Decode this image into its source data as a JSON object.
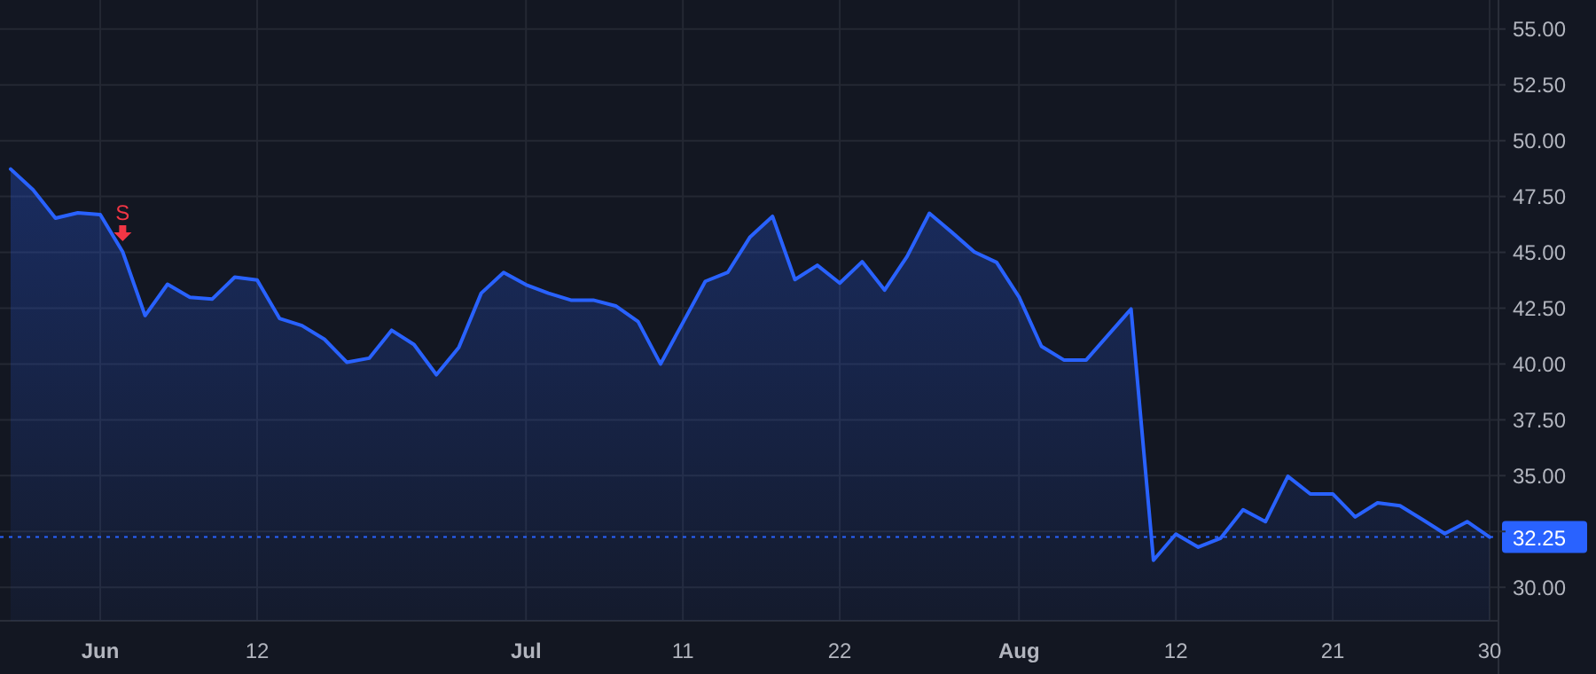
{
  "chart_data": {
    "type": "area",
    "categories": [
      null,
      null,
      null,
      null,
      "Jun",
      null,
      null,
      null,
      null,
      null,
      null,
      "12",
      null,
      null,
      null,
      null,
      null,
      null,
      null,
      null,
      null,
      null,
      null,
      "Jul",
      null,
      null,
      null,
      null,
      null,
      null,
      "11",
      null,
      null,
      null,
      null,
      null,
      null,
      "22",
      null,
      null,
      null,
      null,
      null,
      null,
      null,
      "Aug",
      null,
      null,
      null,
      null,
      null,
      null,
      "12",
      null,
      null,
      null,
      null,
      null,
      null,
      "21",
      null,
      null,
      null,
      null,
      null,
      null,
      "30"
    ],
    "series": [
      {
        "color": "#2962ff",
        "values": [
          48.73,
          47.8,
          46.53,
          46.77,
          46.69,
          45.02,
          42.17,
          43.57,
          42.99,
          42.91,
          43.89,
          43.76,
          42.04,
          41.72,
          41.11,
          40.08,
          40.26,
          41.51,
          40.87,
          39.52,
          40.74,
          43.17,
          44.1,
          43.55,
          43.17,
          42.86,
          42.86,
          42.6,
          41.9,
          40.0,
          41.85,
          43.7,
          44.1,
          45.69,
          46.61,
          43.78,
          44.42,
          43.62,
          44.58,
          43.31,
          44.81,
          46.75,
          45.9,
          45.02,
          44.55,
          43.0,
          40.79,
          40.18,
          40.18,
          41.32,
          42.46,
          31.21,
          32.38,
          31.8,
          32.2,
          33.47,
          32.94,
          34.97,
          34.18,
          34.18,
          33.15,
          33.78,
          33.65,
          33.04,
          32.4,
          32.94,
          32.25
        ]
      }
    ],
    "ylim": [
      28.5,
      56.3
    ],
    "yticks": [
      {
        "value": 30,
        "label": "30.00"
      },
      {
        "value": 32.5,
        "label": null
      },
      {
        "value": 35,
        "label": "35.00"
      },
      {
        "value": 37.5,
        "label": "37.50"
      },
      {
        "value": 40,
        "label": "40.00"
      },
      {
        "value": 42.5,
        "label": "42.50"
      },
      {
        "value": 45,
        "label": "45.00"
      },
      {
        "value": 47.5,
        "label": "47.50"
      },
      {
        "value": 50,
        "label": "50.00"
      },
      {
        "value": 52.5,
        "label": "52.50"
      },
      {
        "value": 55,
        "label": "55.00"
      }
    ],
    "grid": true,
    "ref_lines": [
      {
        "axis": "y",
        "value": 32.25,
        "label": "32.25",
        "color": "#2962ff",
        "line_style": "dotted"
      }
    ],
    "annotations": [
      {
        "text": "S",
        "y": 45.02
      }
    ]
  }
}
